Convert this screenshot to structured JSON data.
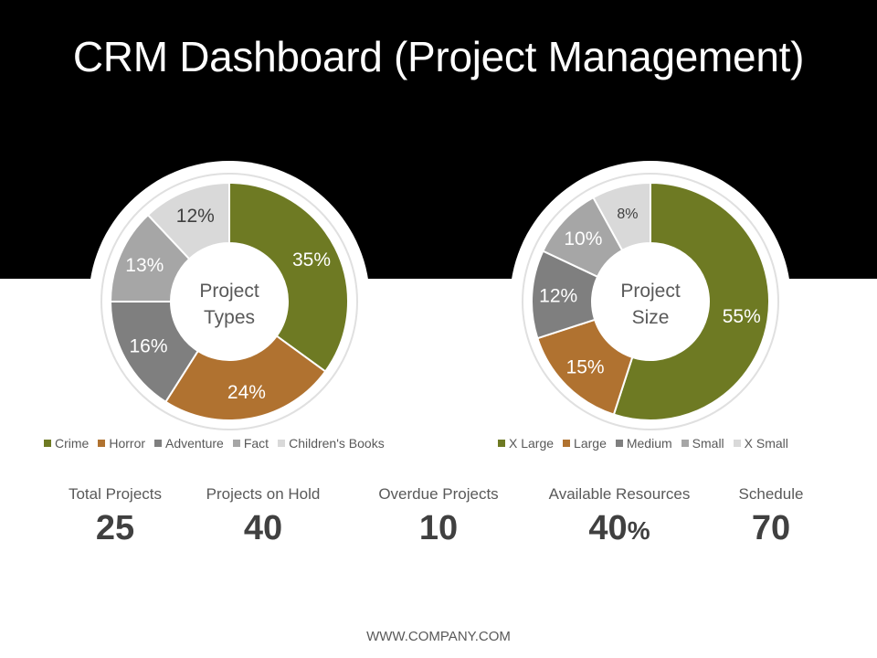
{
  "title": "CRM Dashboard (Project Management)",
  "colors": {
    "band": "#000000",
    "olive": "#6e7a23",
    "copper": "#b07230",
    "gray_dark": "#7f7f7f",
    "gray_mid": "#a6a6a6",
    "gray_light": "#d9d9d9",
    "ring": "#e0e0e0",
    "label_light": "#ffffff",
    "label_dark": "#404040",
    "center_text": "#595959"
  },
  "chart_data": [
    {
      "type": "pie",
      "variant": "donut",
      "center_label": [
        "Project",
        "Types"
      ],
      "start": "top, clockwise",
      "categories": [
        "Crime",
        "Horror",
        "Adventure",
        "Fact",
        "Children's Books"
      ],
      "values": [
        35,
        24,
        16,
        13,
        12
      ],
      "labels": [
        "35%",
        "24%",
        "16%",
        "13%",
        "12%"
      ],
      "label_colors": [
        "#ffffff",
        "#ffffff",
        "#ffffff",
        "#ffffff",
        "#404040"
      ],
      "colors": [
        "#6e7a23",
        "#b07230",
        "#7f7f7f",
        "#a6a6a6",
        "#d9d9d9"
      ],
      "legend_position": "bottom"
    },
    {
      "type": "pie",
      "variant": "donut",
      "center_label": [
        "Project",
        "Size"
      ],
      "start": "top, clockwise",
      "categories": [
        "X Large",
        "Large",
        "Medium",
        "Small",
        "X Small"
      ],
      "values": [
        55,
        15,
        12,
        10,
        8
      ],
      "labels": [
        "55%",
        "15%",
        "12%",
        "10%",
        "8%"
      ],
      "label_colors": [
        "#ffffff",
        "#ffffff",
        "#ffffff",
        "#ffffff",
        "#404040"
      ],
      "colors": [
        "#6e7a23",
        "#b07230",
        "#7f7f7f",
        "#a6a6a6",
        "#d9d9d9"
      ],
      "legend_position": "bottom"
    }
  ],
  "stats": [
    {
      "label": "Total Projects",
      "value": "25",
      "unit": ""
    },
    {
      "label": "Projects on Hold",
      "value": "40",
      "unit": ""
    },
    {
      "label": "Overdue Projects",
      "value": "10",
      "unit": ""
    },
    {
      "label": "Available Resources",
      "value": "40",
      "unit": "%"
    },
    {
      "label": "Schedule",
      "value": "70",
      "unit": ""
    }
  ],
  "footer": "WWW.COMPANY.COM"
}
